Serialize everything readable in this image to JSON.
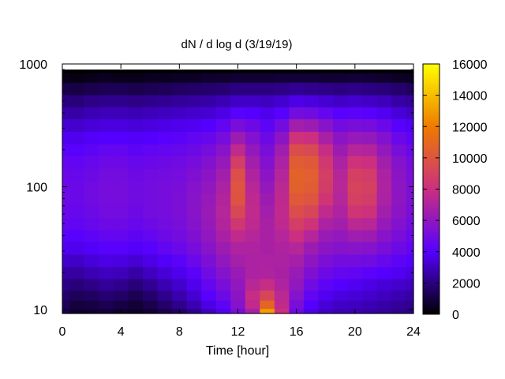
{
  "chart_data": {
    "type": "heatmap",
    "title": "dN / d log d (3/19/19)",
    "xlabel": "Time [hour]",
    "ylabel": "",
    "xlim": [
      0,
      24
    ],
    "ylim": [
      9.3,
      1000
    ],
    "y_scale": "log",
    "x_ticks": [
      "0",
      "4",
      "8",
      "12",
      "16",
      "20",
      "24"
    ],
    "y_ticks": [
      "10",
      "100",
      "1000"
    ],
    "colorbar": {
      "range": [
        0,
        16000
      ],
      "ticks": [
        "0",
        "2000",
        "4000",
        "6000",
        "8000",
        "10000",
        "12000",
        "14000",
        "16000"
      ],
      "colormap": "gnuplot-pm3d-hot",
      "colors": [
        "#000000",
        "#5500ff",
        "#cc2f7f",
        "#ee7b00",
        "#ffff00"
      ]
    },
    "x": [
      0,
      1,
      2,
      3,
      4,
      5,
      6,
      7,
      8,
      9,
      10,
      11,
      12,
      13,
      14,
      15,
      16,
      17,
      18,
      19,
      20,
      21,
      22,
      23,
      24
    ],
    "y": [
      9.5,
      11,
      13,
      16,
      20,
      25,
      32,
      40,
      50,
      63,
      80,
      100,
      125,
      160,
      200,
      250,
      320,
      400,
      500,
      630,
      800,
      900
    ],
    "z": [
      [
        1200,
        700,
        800,
        900,
        700,
        600,
        800,
        1200,
        1600,
        2200,
        3000,
        3800,
        5200,
        6800,
        13000,
        8000,
        4800,
        3600,
        3000,
        2800,
        2800,
        2600,
        2400,
        2200,
        2000
      ],
      [
        1400,
        1000,
        1100,
        1300,
        1100,
        900,
        1200,
        1700,
        2200,
        2800,
        3600,
        4300,
        5600,
        7600,
        10800,
        7600,
        5200,
        4000,
        3400,
        3100,
        3000,
        2800,
        2600,
        2400,
        2200
      ],
      [
        1700,
        1400,
        1500,
        1800,
        1600,
        1300,
        1700,
        2200,
        2700,
        3300,
        4100,
        4800,
        5800,
        7800,
        9200,
        7400,
        5600,
        4400,
        3800,
        3500,
        3400,
        3200,
        3000,
        2800,
        2600
      ],
      [
        2100,
        1900,
        2100,
        2400,
        2200,
        1900,
        2300,
        2800,
        3200,
        3700,
        4500,
        5200,
        6000,
        7300,
        7800,
        7000,
        6000,
        4900,
        4300,
        4000,
        3800,
        3600,
        3400,
        3200,
        3000
      ],
      [
        2600,
        2500,
        2800,
        3000,
        2900,
        2600,
        3000,
        3400,
        3700,
        4200,
        4900,
        5600,
        6300,
        6900,
        7000,
        6800,
        6300,
        5400,
        4800,
        4500,
        4400,
        4200,
        4000,
        3800,
        3500
      ],
      [
        3200,
        3100,
        3400,
        3600,
        3500,
        3300,
        3600,
        3900,
        4200,
        4700,
        5300,
        6000,
        6700,
        6900,
        6900,
        6900,
        6700,
        5900,
        5300,
        5000,
        5000,
        4900,
        4600,
        4300,
        4000
      ],
      [
        3800,
        3700,
        3900,
        4100,
        4100,
        3900,
        4100,
        4400,
        4700,
        5100,
        5700,
        6400,
        7000,
        7000,
        6800,
        7000,
        7200,
        6400,
        5800,
        5600,
        5700,
        5600,
        5200,
        4800,
        4400
      ],
      [
        4200,
        4100,
        4300,
        4500,
        4500,
        4300,
        4500,
        4800,
        5000,
        5400,
        6000,
        6800,
        7600,
        7200,
        6800,
        7200,
        8000,
        7200,
        6300,
        6100,
        6500,
        6400,
        5700,
        5200,
        4700
      ],
      [
        4500,
        4400,
        4600,
        4800,
        4800,
        4600,
        4800,
        5000,
        5200,
        5600,
        6200,
        7100,
        8400,
        7500,
        6800,
        7500,
        8800,
        8200,
        6900,
        6600,
        7400,
        7300,
        6200,
        5500,
        5000
      ],
      [
        4700,
        4600,
        4800,
        5000,
        5000,
        4800,
        5000,
        5100,
        5300,
        5700,
        6300,
        7200,
        9300,
        7600,
        6600,
        7600,
        9600,
        9200,
        7600,
        7000,
        8300,
        8100,
        6600,
        5800,
        5200
      ],
      [
        4800,
        4700,
        4900,
        5100,
        5100,
        4900,
        5000,
        5100,
        5300,
        5700,
        6200,
        7100,
        9900,
        7500,
        6400,
        7500,
        10200,
        10000,
        8300,
        7200,
        8900,
        8700,
        6900,
        5900,
        5300
      ],
      [
        4800,
        4700,
        4900,
        5100,
        5100,
        4900,
        5000,
        5100,
        5200,
        5600,
        6000,
        6900,
        10000,
        7300,
        6100,
        7400,
        10600,
        10400,
        8700,
        7300,
        9100,
        8900,
        7000,
        5900,
        5300
      ],
      [
        4700,
        4600,
        4800,
        5000,
        5000,
        4800,
        4900,
        5000,
        5100,
        5400,
        5800,
        6600,
        9700,
        7000,
        5800,
        7200,
        10700,
        10500,
        8800,
        7200,
        8900,
        8700,
        6900,
        5800,
        5200
      ],
      [
        4500,
        4400,
        4600,
        4800,
        4800,
        4600,
        4700,
        4800,
        4900,
        5100,
        5500,
        6200,
        8800,
        6600,
        5500,
        6900,
        10400,
        10200,
        8500,
        6900,
        8200,
        8000,
        6600,
        5600,
        5000
      ],
      [
        4200,
        4100,
        4300,
        4500,
        4500,
        4300,
        4400,
        4500,
        4600,
        4800,
        5100,
        5700,
        7600,
        6100,
        5200,
        6500,
        9600,
        9400,
        7800,
        6400,
        7200,
        7100,
        6100,
        5200,
        4700
      ],
      [
        3800,
        3700,
        3900,
        4000,
        4000,
        3900,
        4000,
        4100,
        4200,
        4400,
        4600,
        5100,
        6400,
        5500,
        4800,
        5800,
        8200,
        8000,
        6800,
        5800,
        6200,
        6100,
        5500,
        4700,
        4300
      ],
      [
        3300,
        3200,
        3400,
        3500,
        3500,
        3400,
        3500,
        3600,
        3700,
        3800,
        4000,
        4400,
        5200,
        4800,
        4300,
        5000,
        6600,
        6400,
        5700,
        5000,
        5200,
        5100,
        4700,
        4100,
        3800
      ],
      [
        2700,
        2600,
        2800,
        2900,
        2900,
        2800,
        2900,
        3000,
        3100,
        3200,
        3300,
        3600,
        4100,
        4000,
        3700,
        4100,
        5000,
        4900,
        4500,
        4100,
        4200,
        4100,
        3800,
        3400,
        3100
      ],
      [
        2000,
        1900,
        2100,
        2200,
        2200,
        2100,
        2200,
        2300,
        2400,
        2500,
        2600,
        2800,
        3100,
        3100,
        3000,
        3200,
        3600,
        3500,
        3300,
        3100,
        3200,
        3100,
        2900,
        2600,
        2400
      ],
      [
        1200,
        1100,
        1200,
        1300,
        1300,
        1200,
        1300,
        1400,
        1500,
        1600,
        1700,
        1800,
        2000,
        2000,
        2000,
        2100,
        2300,
        2200,
        2100,
        2000,
        2100,
        2000,
        1900,
        1700,
        1500
      ],
      [
        400,
        300,
        400,
        500,
        400,
        400,
        500,
        500,
        600,
        600,
        700,
        700,
        800,
        800,
        800,
        900,
        900,
        900,
        800,
        800,
        900,
        800,
        700,
        600,
        500
      ],
      [
        0,
        0,
        0,
        0,
        0,
        0,
        0,
        0,
        0,
        0,
        0,
        0,
        0,
        0,
        0,
        0,
        0,
        0,
        0,
        0,
        0,
        0,
        0,
        0,
        0
      ]
    ]
  }
}
